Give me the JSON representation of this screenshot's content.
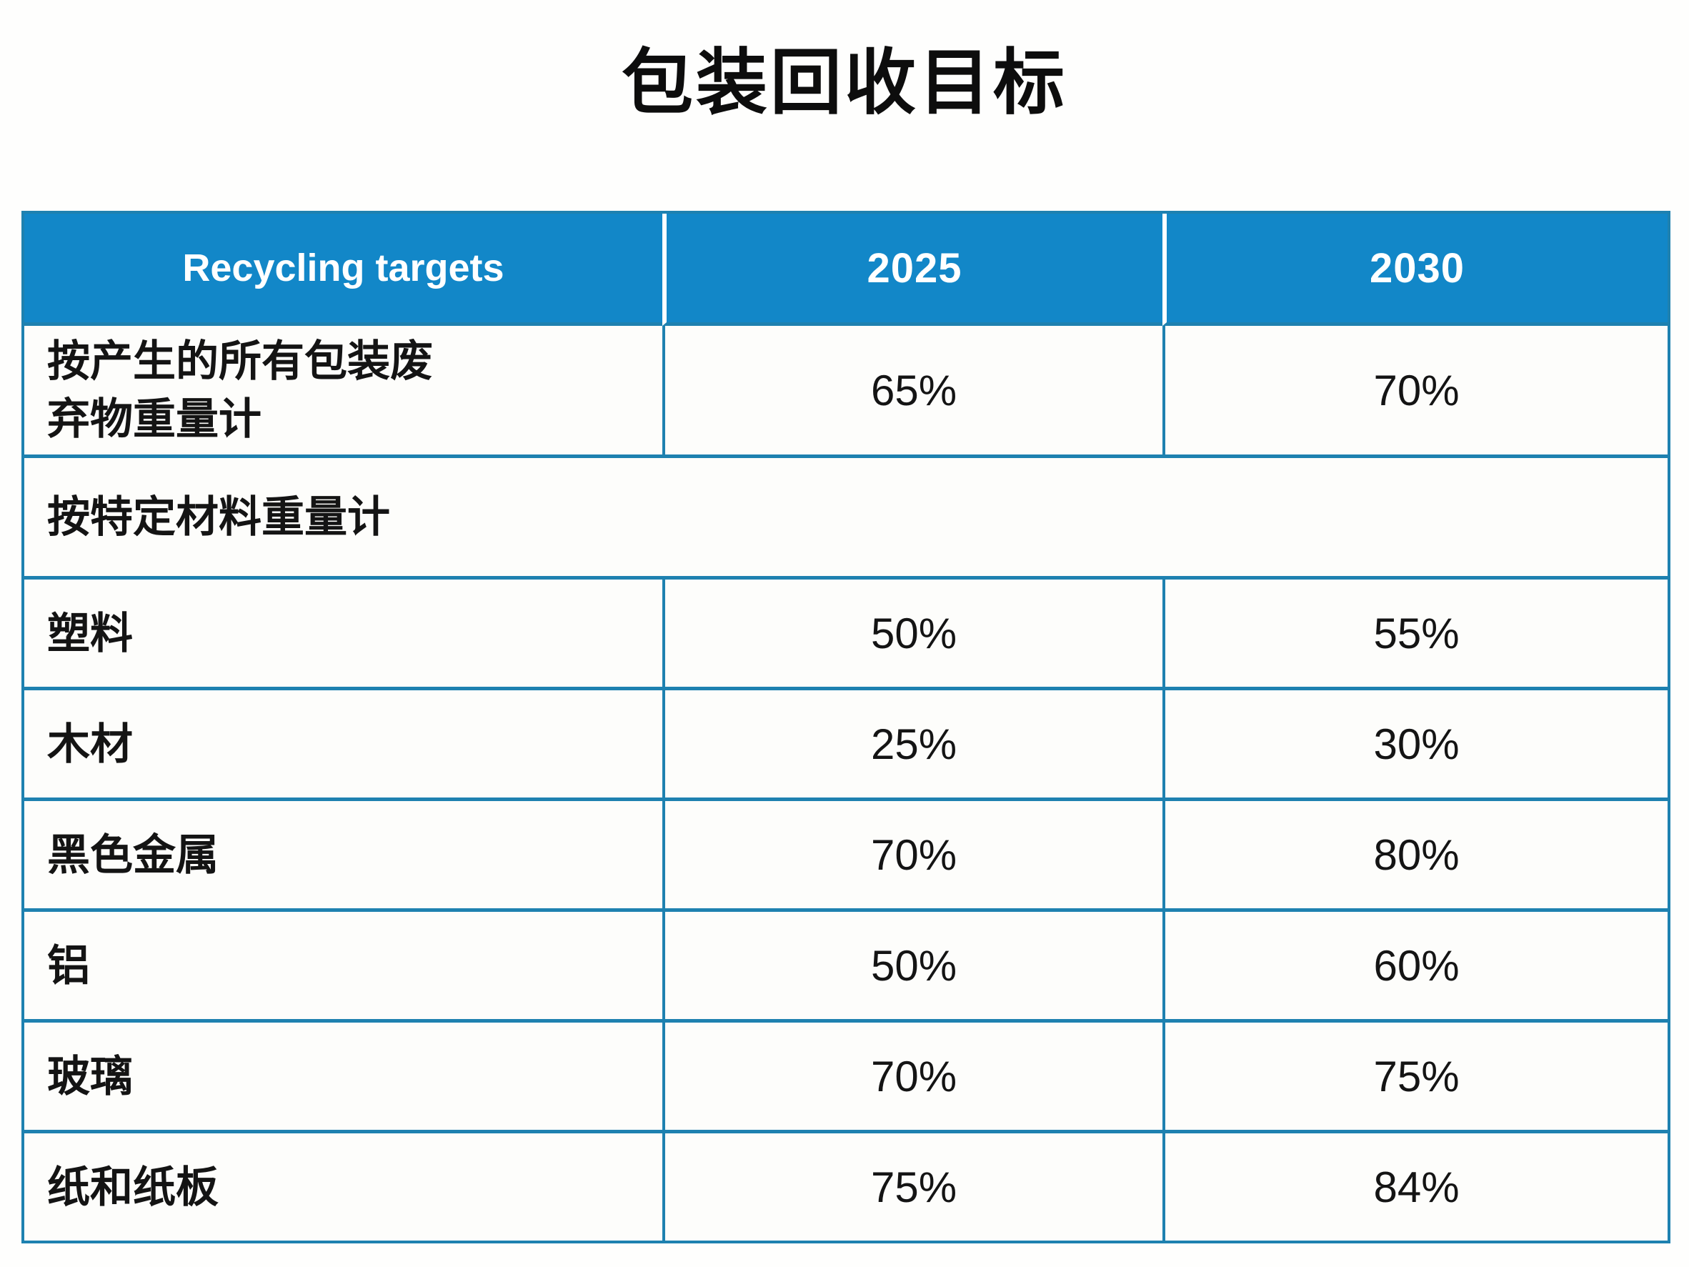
{
  "title": "包装回收目标",
  "colors": {
    "header_bg": "#1287c8",
    "border": "#1e81b0",
    "header_text": "#ffffff",
    "body_text": "#141414",
    "cell_bg": "#fdfdfb"
  },
  "table": {
    "headers": [
      "Recycling targets",
      "2025",
      "2030"
    ],
    "rows": [
      {
        "label": "按产生的所有包装废\n弃物重量计",
        "v2025": "65%",
        "v2030": "70%"
      },
      {
        "label": "按特定材料重量计"
      },
      {
        "label": "塑料",
        "v2025": "50%",
        "v2030": "55%"
      },
      {
        "label": "木材",
        "v2025": "25%",
        "v2030": "30%"
      },
      {
        "label": "黑色金属",
        "v2025": "70%",
        "v2030": "80%"
      },
      {
        "label": "铝",
        "v2025": "50%",
        "v2030": "60%"
      },
      {
        "label": "玻璃",
        "v2025": "70%",
        "v2030": "75%"
      },
      {
        "label": "纸和纸板",
        "v2025": "75%",
        "v2030": "84%"
      }
    ]
  },
  "chart_data": {
    "type": "table",
    "title": "包装回收目标",
    "columns": [
      "Recycling targets",
      "2025",
      "2030"
    ],
    "rows": [
      [
        "按产生的所有包装废弃物重量计",
        "65%",
        "70%"
      ],
      [
        "按特定材料重量计",
        "",
        ""
      ],
      [
        "塑料",
        "50%",
        "55%"
      ],
      [
        "木材",
        "25%",
        "30%"
      ],
      [
        "黑色金属",
        "70%",
        "80%"
      ],
      [
        "铝",
        "50%",
        "60%"
      ],
      [
        "玻璃",
        "70%",
        "75%"
      ],
      [
        "纸和纸板",
        "75%",
        "84%"
      ]
    ]
  }
}
